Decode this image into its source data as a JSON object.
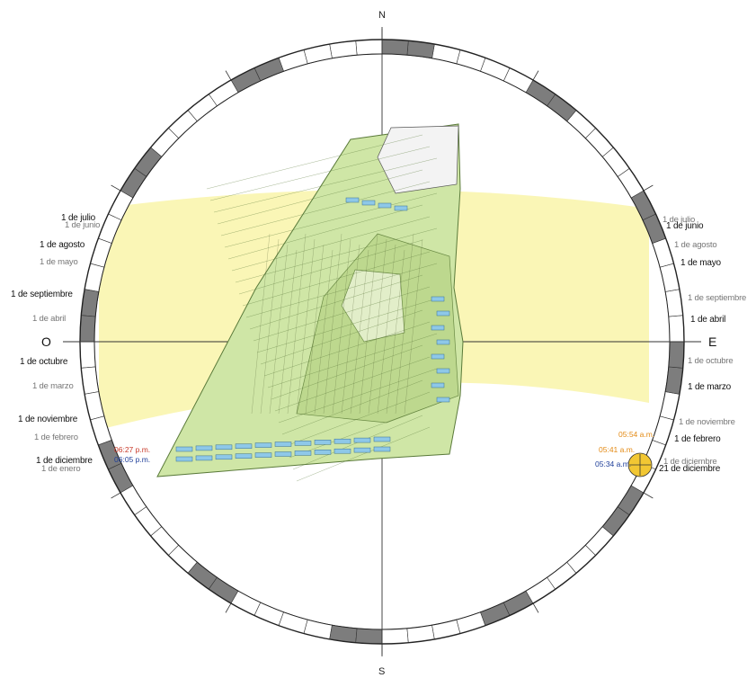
{
  "compass": {
    "north": "N",
    "south": "S",
    "west": "O",
    "east": "E"
  },
  "colors": {
    "sun_band": "#faf5b2",
    "ring_dark": "#7d7d7d",
    "site_fill": "#cfe6a6",
    "site_line": "#5a7a3a",
    "building_blue": "#8ec8e8",
    "time_blue": "#1f3f9a",
    "time_orange": "#e38a14",
    "time_red": "#c83a2a",
    "sun_marker": "#f2c733"
  },
  "west_labels": [
    {
      "text": "1 de julio",
      "style": "strong"
    },
    {
      "text": "1 de junio",
      "style": "soft"
    },
    {
      "text": "1 de agosto",
      "style": "strong"
    },
    {
      "text": "1 de mayo",
      "style": "soft"
    },
    {
      "text": "1 de septiembre",
      "style": "strong"
    },
    {
      "text": "1 de abril",
      "style": "soft"
    },
    {
      "text": "1 de octubre",
      "style": "strong"
    },
    {
      "text": "1 de marzo",
      "style": "soft"
    },
    {
      "text": "1 de noviembre",
      "style": "strong"
    },
    {
      "text": "1 de febrero",
      "style": "soft"
    },
    {
      "text": "1 de diciembre",
      "style": "strong"
    },
    {
      "text": "1 de enero",
      "style": "soft"
    }
  ],
  "west_times": [
    {
      "text": "06:27 p.m.",
      "color": "red"
    },
    {
      "text": "06:05 p.m.",
      "color": "blue"
    }
  ],
  "east_labels": [
    {
      "text": "1 de julio",
      "style": "soft"
    },
    {
      "text": "1 de junio",
      "style": "strong"
    },
    {
      "text": "1 de agosto",
      "style": "soft"
    },
    {
      "text": "1 de mayo",
      "style": "strong"
    },
    {
      "text": "1 de septiembre",
      "style": "soft"
    },
    {
      "text": "1 de abril",
      "style": "strong"
    },
    {
      "text": "1 de octubre",
      "style": "soft"
    },
    {
      "text": "1 de marzo",
      "style": "strong"
    },
    {
      "text": "1 de noviembre",
      "style": "soft"
    },
    {
      "text": "1 de febrero",
      "style": "strong"
    },
    {
      "text": "1 de diciembre",
      "style": "soft"
    },
    {
      "text": "21 de diciembre",
      "style": "blue"
    }
  ],
  "east_times": [
    {
      "text": "05:54 a.m.",
      "color": "orange"
    },
    {
      "text": "05:41 a.m.",
      "color": "orange"
    },
    {
      "text": "05:34 a.m.",
      "color": "blue"
    }
  ]
}
